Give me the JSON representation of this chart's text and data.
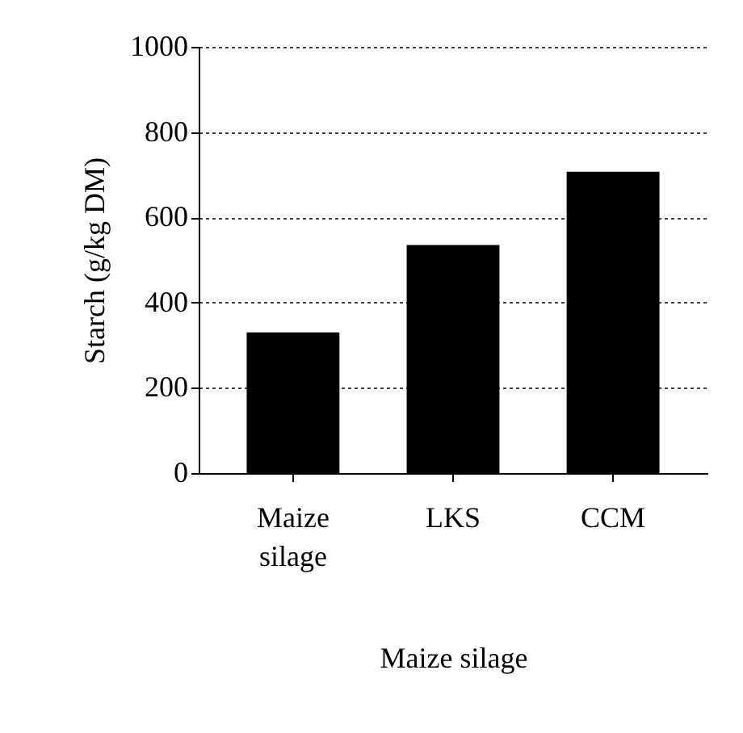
{
  "chart_data": {
    "type": "bar",
    "xlabel": "Maize silage",
    "ylabel": "Starch (g/kg DM)",
    "categories": [
      "Maize silage",
      "LKS",
      "CCM"
    ],
    "values": [
      330,
      535,
      707
    ],
    "color": "#000000",
    "ylim": [
      0,
      1000
    ],
    "yticks": [
      0,
      200,
      400,
      600,
      800,
      1000
    ],
    "grid": "y"
  }
}
